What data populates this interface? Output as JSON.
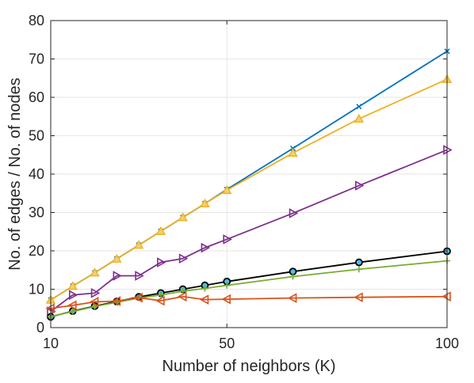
{
  "chart_data": {
    "type": "line",
    "xlabel": "Number of neighbors (K)",
    "ylabel": "No. of edges / No. of nodes",
    "xlim": [
      10,
      100
    ],
    "ylim": [
      0,
      80
    ],
    "xticks": [
      10,
      50,
      100
    ],
    "yticks": [
      0,
      10,
      20,
      30,
      40,
      50,
      60,
      70,
      80
    ],
    "grid": true,
    "legend": "none",
    "series": [
      {
        "color": "#0072bd",
        "marker": "x",
        "x": [
          10,
          15,
          20,
          25,
          30,
          35,
          40,
          45,
          50,
          65,
          80,
          100
        ],
        "y": [
          7.2,
          10.8,
          14.3,
          17.9,
          21.5,
          25.1,
          28.7,
          32.3,
          36.0,
          46.7,
          57.6,
          72.0
        ]
      },
      {
        "color": "#edb120",
        "marker": "triangle-up",
        "x": [
          10,
          15,
          20,
          25,
          30,
          35,
          40,
          45,
          50,
          65,
          80,
          100
        ],
        "y": [
          7.2,
          10.8,
          14.3,
          17.9,
          21.5,
          25.1,
          28.7,
          32.3,
          35.8,
          45.5,
          54.4,
          64.7
        ]
      },
      {
        "color": "#7e2f8e",
        "marker": "triangle-right",
        "x": [
          10,
          15,
          20,
          25,
          30,
          35,
          40,
          45,
          50,
          65,
          80,
          100
        ],
        "y": [
          4.2,
          8.5,
          9.0,
          13.5,
          13.5,
          17.0,
          18.0,
          20.8,
          23.0,
          29.8,
          37.0,
          46.3
        ]
      },
      {
        "color": "#000000",
        "marker": "circle",
        "x": [
          10,
          15,
          20,
          25,
          30,
          35,
          40,
          45,
          50,
          65,
          80,
          100
        ],
        "y": [
          2.8,
          4.3,
          5.6,
          6.8,
          8.0,
          9.0,
          10.0,
          11.0,
          12.0,
          14.6,
          17.0,
          19.9
        ]
      },
      {
        "color": "#77ac30",
        "marker": "plus",
        "x": [
          10,
          15,
          20,
          25,
          30,
          35,
          40,
          45,
          50,
          65,
          80,
          100
        ],
        "y": [
          2.9,
          4.2,
          5.5,
          6.6,
          7.7,
          8.5,
          9.5,
          10.2,
          11.0,
          13.3,
          15.2,
          17.4
        ]
      },
      {
        "color": "#d95319",
        "marker": "triangle-left",
        "x": [
          10,
          15,
          20,
          25,
          30,
          35,
          40,
          45,
          50,
          65,
          80,
          100
        ],
        "y": [
          5.0,
          5.8,
          6.7,
          6.9,
          7.8,
          7.0,
          8.1,
          7.3,
          7.4,
          7.7,
          7.9,
          8.1
        ]
      }
    ]
  }
}
